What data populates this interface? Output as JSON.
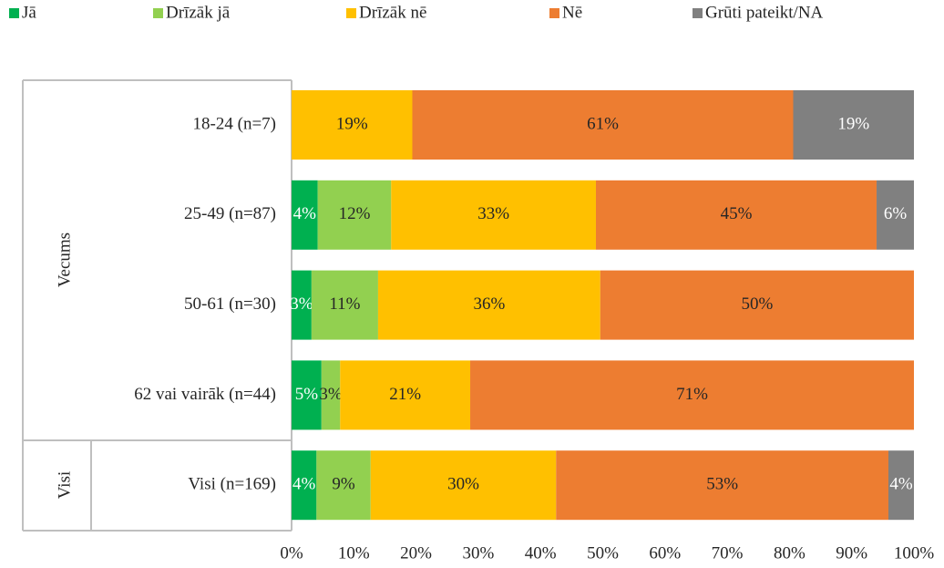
{
  "chart_data": {
    "type": "stacked-bar-horizontal",
    "categories": [
      "18-24 (n=7)",
      "25-49 (n=87)",
      "50-61 (n=30)",
      "62 vai vairāk (n=44)",
      "Visi (n=169)"
    ],
    "group_labels": [
      "Vecums",
      "Visi"
    ],
    "series": [
      {
        "name": "Jā",
        "color": "#00b050",
        "values": [
          0,
          4.2,
          3.2,
          4.8,
          4.0
        ],
        "value_labels": [
          null,
          "4%",
          "3%",
          "5%",
          "4%"
        ]
      },
      {
        "name": "Drīzāk jā",
        "color": "#92d050",
        "values": [
          0,
          11.8,
          10.7,
          3.0,
          8.7
        ],
        "value_labels": [
          null,
          "12%",
          "11%",
          "3%",
          "9%"
        ]
      },
      {
        "name": "Drīzāk nē",
        "color": "#ffc000",
        "values": [
          19.4,
          32.9,
          35.7,
          20.9,
          29.8
        ],
        "value_labels": [
          "19%",
          "33%",
          "36%",
          "21%",
          "30%"
        ]
      },
      {
        "name": "Nē",
        "color": "#ed7d31",
        "values": [
          61.2,
          45.1,
          50.4,
          71.3,
          53.4
        ],
        "value_labels": [
          "61%",
          "45%",
          "50%",
          "71%",
          "53%"
        ]
      },
      {
        "name": "Grūti pateikt/NA",
        "color": "#808080",
        "values": [
          19.4,
          6.0,
          0,
          0,
          4.1
        ],
        "value_labels": [
          "19%",
          "6%",
          null,
          null,
          "4%"
        ]
      }
    ],
    "xlim": [
      0,
      100
    ],
    "xticks": [
      {
        "value": 0,
        "label": "0%"
      },
      {
        "value": 10,
        "label": "10%"
      },
      {
        "value": 20,
        "label": "20%"
      },
      {
        "value": 30,
        "label": "30%"
      },
      {
        "value": 40,
        "label": "40%"
      },
      {
        "value": 50,
        "label": "50%"
      },
      {
        "value": 60,
        "label": "60%"
      },
      {
        "value": 70,
        "label": "70%"
      },
      {
        "value": 80,
        "label": "80%"
      },
      {
        "value": 90,
        "label": "90%"
      },
      {
        "value": 100,
        "label": "100%"
      }
    ]
  }
}
